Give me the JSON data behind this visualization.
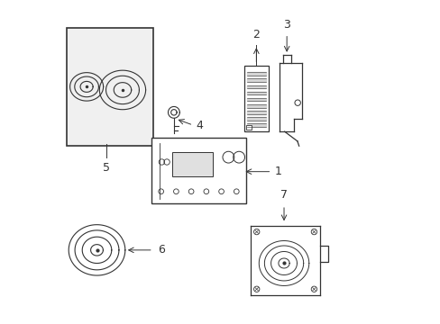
{
  "bg_color": "#ffffff",
  "line_color": "#333333",
  "label_color": "#000000",
  "figsize": [
    4.89,
    3.6
  ],
  "dpi": 100
}
